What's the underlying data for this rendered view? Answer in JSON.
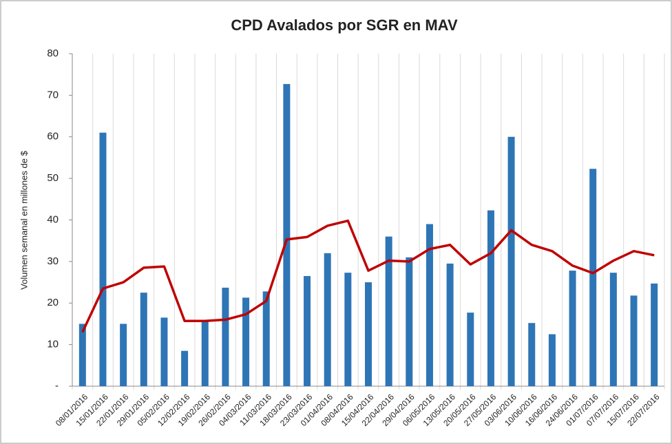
{
  "chart_data": {
    "type": "bar_line",
    "title": "CPD Avalados por SGR en MAV",
    "y_label": "Volumen semanal en  millones de $",
    "categories": [
      "08/01/2016",
      "15/01/2016",
      "22/01/2016",
      "29/01/2016",
      "05/02/2016",
      "12/02/2016",
      "19/02/2016",
      "26/02/2016",
      "04/03/2016",
      "11/03/2016",
      "18/03/2016",
      "23/03/2016",
      "01/04/2016",
      "08/04/2016",
      "15/04/2016",
      "22/04/2016",
      "29/04/2016",
      "06/05/2016",
      "13/05/2016",
      "20/05/2016",
      "27/05/2016",
      "03/06/2016",
      "10/06/2016",
      "16/06/2016",
      "24/06/2016",
      "01/07/2016",
      "07/07/2016",
      "15/07/2016",
      "22/07/2016"
    ],
    "series": [
      {
        "type": "bar",
        "color": "#2e75b6",
        "values": [
          15,
          61,
          15,
          22.5,
          16.5,
          8.5,
          15.5,
          23.7,
          21.3,
          22.8,
          72.7,
          26.5,
          32,
          27.3,
          25,
          36,
          31,
          39,
          29.5,
          17.7,
          42.3,
          60,
          15.2,
          12.5,
          27.8,
          52.3,
          27.3,
          21.8,
          24.7
        ]
      },
      {
        "type": "line",
        "color": "#c00000",
        "values": [
          13,
          23.5,
          25,
          28.5,
          28.8,
          15.7,
          15.7,
          16,
          17.3,
          20.5,
          35.3,
          35.9,
          38.6,
          39.8,
          27.8,
          30.2,
          30,
          33,
          34,
          29.3,
          32,
          37.5,
          34,
          32.5,
          29,
          27.2,
          30.2,
          32.5,
          31.5
        ]
      }
    ],
    "ylim": [
      0,
      80
    ],
    "yticks": [
      {
        "value": 0,
        "label": "-"
      },
      10,
      20,
      30,
      40,
      50,
      60,
      70,
      80
    ]
  }
}
